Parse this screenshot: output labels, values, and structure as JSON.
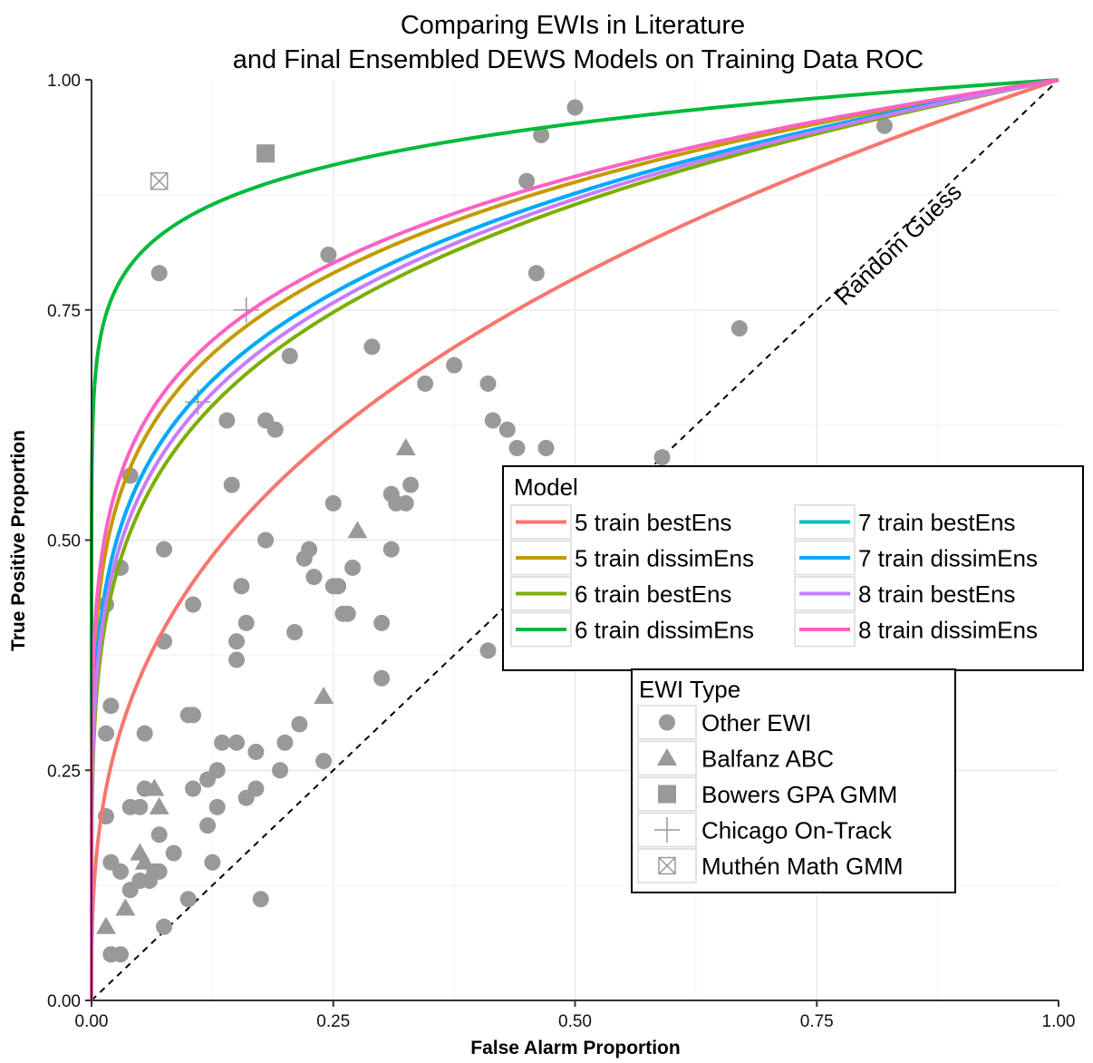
{
  "chart_data": {
    "type": "line+scatter",
    "title": [
      "Comparing EWIs in Literature",
      "and Final Ensembled DEWS Models on Training Data ROC"
    ],
    "xlabel": "False Alarm Proportion",
    "ylabel": "True Positive Proportion",
    "xlim": [
      0,
      1
    ],
    "ylim": [
      0,
      1
    ],
    "x_ticks": [
      "0.00",
      "0.25",
      "0.50",
      "0.75",
      "1.00"
    ],
    "y_ticks": [
      "0.00",
      "0.25",
      "0.50",
      "0.75",
      "1.00"
    ],
    "grid": true,
    "reference_line": {
      "label": "Random Guess",
      "from": [
        0,
        0
      ],
      "to": [
        1,
        1
      ],
      "style": "dashed"
    },
    "model_legend": {
      "title": "Model",
      "placement": "right-middle",
      "columns": 2,
      "entries": [
        {
          "name": "5 train bestEns",
          "color": "#F8766D",
          "exponent": 0.35
        },
        {
          "name": "5 train dissimEns",
          "color": "#C49A00",
          "exponent": 0.17
        },
        {
          "name": "6 train bestEns",
          "color": "#7CAE00",
          "exponent": 0.21
        },
        {
          "name": "6 train dissimEns",
          "color": "#00BA38",
          "exponent": 0.07
        },
        {
          "name": "7 train bestEns",
          "color": "#00C0B8",
          "exponent": 0.19
        },
        {
          "name": "7 train dissimEns",
          "color": "#00A9FF",
          "exponent": 0.19
        },
        {
          "name": "8 train bestEns",
          "color": "#C77CFF",
          "exponent": 0.2
        },
        {
          "name": "8 train dissimEns",
          "color": "#FF61C3",
          "exponent": 0.16
        }
      ]
    },
    "ewi_legend": {
      "title": "EWI Type",
      "placement": "bottom-right",
      "entries": [
        {
          "name": "Other EWI",
          "shape": "circle"
        },
        {
          "name": "Balfanz ABC",
          "shape": "triangle"
        },
        {
          "name": "Bowers GPA GMM",
          "shape": "square"
        },
        {
          "name": "Chicago On-Track",
          "shape": "plus"
        },
        {
          "name": "Muthén Math GMM",
          "shape": "boxx"
        }
      ]
    },
    "point_color": "#999999",
    "points": {
      "circle": [
        [
          0.07,
          0.79
        ],
        [
          0.04,
          0.57
        ],
        [
          0.015,
          0.43
        ],
        [
          0.03,
          0.47
        ],
        [
          0.015,
          0.29
        ],
        [
          0.02,
          0.32
        ],
        [
          0.015,
          0.2
        ],
        [
          0.02,
          0.15
        ],
        [
          0.03,
          0.14
        ],
        [
          0.02,
          0.05
        ],
        [
          0.03,
          0.05
        ],
        [
          0.04,
          0.12
        ],
        [
          0.05,
          0.13
        ],
        [
          0.04,
          0.21
        ],
        [
          0.05,
          0.21
        ],
        [
          0.055,
          0.23
        ],
        [
          0.055,
          0.29
        ],
        [
          0.06,
          0.13
        ],
        [
          0.065,
          0.14
        ],
        [
          0.07,
          0.18
        ],
        [
          0.07,
          0.14
        ],
        [
          0.075,
          0.08
        ],
        [
          0.075,
          0.39
        ],
        [
          0.075,
          0.49
        ],
        [
          0.085,
          0.16
        ],
        [
          0.1,
          0.11
        ],
        [
          0.1,
          0.31
        ],
        [
          0.105,
          0.31
        ],
        [
          0.105,
          0.23
        ],
        [
          0.105,
          0.43
        ],
        [
          0.12,
          0.24
        ],
        [
          0.12,
          0.19
        ],
        [
          0.125,
          0.15
        ],
        [
          0.13,
          0.21
        ],
        [
          0.13,
          0.25
        ],
        [
          0.135,
          0.28
        ],
        [
          0.14,
          0.63
        ],
        [
          0.145,
          0.56
        ],
        [
          0.15,
          0.39
        ],
        [
          0.15,
          0.37
        ],
        [
          0.155,
          0.45
        ],
        [
          0.15,
          0.28
        ],
        [
          0.16,
          0.22
        ],
        [
          0.16,
          0.41
        ],
        [
          0.17,
          0.27
        ],
        [
          0.17,
          0.23
        ],
        [
          0.175,
          0.11
        ],
        [
          0.18,
          0.5
        ],
        [
          0.18,
          0.63
        ],
        [
          0.19,
          0.62
        ],
        [
          0.195,
          0.25
        ],
        [
          0.2,
          0.28
        ],
        [
          0.205,
          0.7
        ],
        [
          0.21,
          0.4
        ],
        [
          0.215,
          0.3
        ],
        [
          0.22,
          0.48
        ],
        [
          0.225,
          0.49
        ],
        [
          0.23,
          0.46
        ],
        [
          0.24,
          0.26
        ],
        [
          0.245,
          0.81
        ],
        [
          0.25,
          0.45
        ],
        [
          0.25,
          0.54
        ],
        [
          0.255,
          0.45
        ],
        [
          0.26,
          0.42
        ],
        [
          0.265,
          0.42
        ],
        [
          0.27,
          0.47
        ],
        [
          0.29,
          0.71
        ],
        [
          0.3,
          0.41
        ],
        [
          0.3,
          0.35
        ],
        [
          0.31,
          0.49
        ],
        [
          0.31,
          0.55
        ],
        [
          0.315,
          0.54
        ],
        [
          0.325,
          0.54
        ],
        [
          0.33,
          0.56
        ],
        [
          0.345,
          0.67
        ],
        [
          0.375,
          0.69
        ],
        [
          0.41,
          0.67
        ],
        [
          0.41,
          0.38
        ],
        [
          0.415,
          0.63
        ],
        [
          0.43,
          0.62
        ],
        [
          0.44,
          0.6
        ],
        [
          0.45,
          0.89
        ],
        [
          0.46,
          0.79
        ],
        [
          0.465,
          0.94
        ],
        [
          0.47,
          0.6
        ],
        [
          0.5,
          0.97
        ],
        [
          0.59,
          0.59
        ],
        [
          0.67,
          0.73
        ],
        [
          0.82,
          0.95
        ]
      ],
      "triangle": [
        [
          0.015,
          0.08
        ],
        [
          0.035,
          0.1
        ],
        [
          0.05,
          0.16
        ],
        [
          0.055,
          0.15
        ],
        [
          0.065,
          0.23
        ],
        [
          0.07,
          0.21
        ],
        [
          0.24,
          0.33
        ],
        [
          0.275,
          0.51
        ],
        [
          0.325,
          0.6
        ]
      ],
      "square": [
        [
          0.18,
          0.92
        ]
      ],
      "plus": [
        [
          0.11,
          0.65
        ],
        [
          0.16,
          0.75
        ]
      ],
      "boxx": [
        [
          0.07,
          0.89
        ]
      ]
    }
  }
}
